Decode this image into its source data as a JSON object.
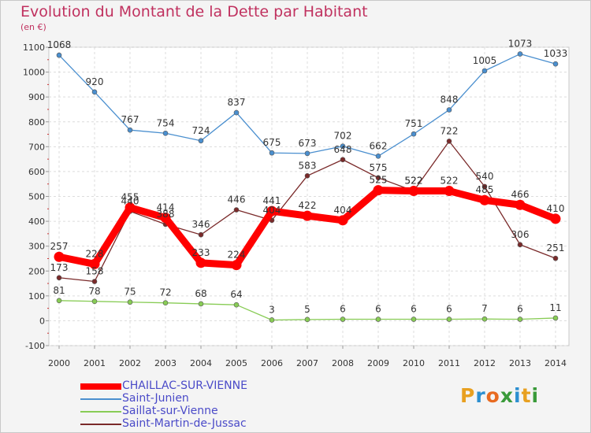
{
  "title": "Evolution du Montant de la Dette par Habitant",
  "subtitle": "(en €)",
  "logo": {
    "letters": [
      "P",
      "r",
      "o",
      "x",
      "i",
      "t",
      "i"
    ],
    "colors": [
      "#e8a020",
      "#2c8fd0",
      "#e86a20",
      "#3a9a3a",
      "#2c8fd0",
      "#e8a020",
      "#3a9a3a"
    ]
  },
  "chart_data": {
    "type": "line",
    "x": [
      "2000",
      "2001",
      "2002",
      "2003",
      "2004",
      "2005",
      "2006",
      "2007",
      "2008",
      "2009",
      "2010",
      "2011",
      "2012",
      "2013",
      "2014"
    ],
    "ylim": [
      -100,
      1100
    ],
    "yticks": [
      "-100",
      "0",
      "100",
      "200",
      "300",
      "400",
      "500",
      "600",
      "700",
      "800",
      "900",
      "1000",
      "1100"
    ],
    "grid": true,
    "legend": "bottom-left",
    "series": [
      {
        "name": "CHAILLAC-SUR-VIENNE",
        "color": "#ff0000",
        "values": [
          257,
          228,
          455,
          414,
          233,
          224,
          441,
          422,
          404,
          525,
          522,
          522,
          485,
          466,
          410
        ],
        "labels": [
          "257",
          "228",
          "455",
          "414",
          "233",
          "224",
          "441",
          "422",
          "404",
          "525",
          "522",
          "522",
          "485",
          "466",
          "410"
        ]
      },
      {
        "name": "Saint-Junien",
        "color": "#4a8fcf",
        "values": [
          1068,
          920,
          767,
          754,
          724,
          837,
          675,
          673,
          702,
          662,
          751,
          848,
          1005,
          1073,
          1033
        ],
        "labels": [
          "1068",
          "920",
          "767",
          "754",
          "724",
          "837",
          "675",
          "673",
          "702",
          "662",
          "751",
          "848",
          "1005",
          "1073",
          "1033"
        ]
      },
      {
        "name": "Saillat-sur-Vienne",
        "color": "#88cc55",
        "values": [
          81,
          78,
          75,
          72,
          68,
          64,
          3,
          5,
          6,
          6,
          6,
          6,
          7,
          6,
          11
        ],
        "labels": [
          "81",
          "78",
          "75",
          "72",
          "68",
          "64",
          "3",
          "5",
          "6",
          "6",
          "6",
          "6",
          "7",
          "6",
          "11"
        ]
      },
      {
        "name": "Saint-Martin-de-Jussac",
        "color": "#7a2a2a",
        "values": [
          173,
          158,
          440,
          388,
          346,
          446,
          404,
          583,
          648,
          575,
          522,
          722,
          540,
          306,
          251
        ],
        "labels": [
          "173",
          "158",
          "440",
          "388",
          "346",
          "446",
          "404",
          "583",
          "648",
          "575",
          "522",
          "722",
          "540",
          "306",
          "251"
        ]
      }
    ]
  }
}
